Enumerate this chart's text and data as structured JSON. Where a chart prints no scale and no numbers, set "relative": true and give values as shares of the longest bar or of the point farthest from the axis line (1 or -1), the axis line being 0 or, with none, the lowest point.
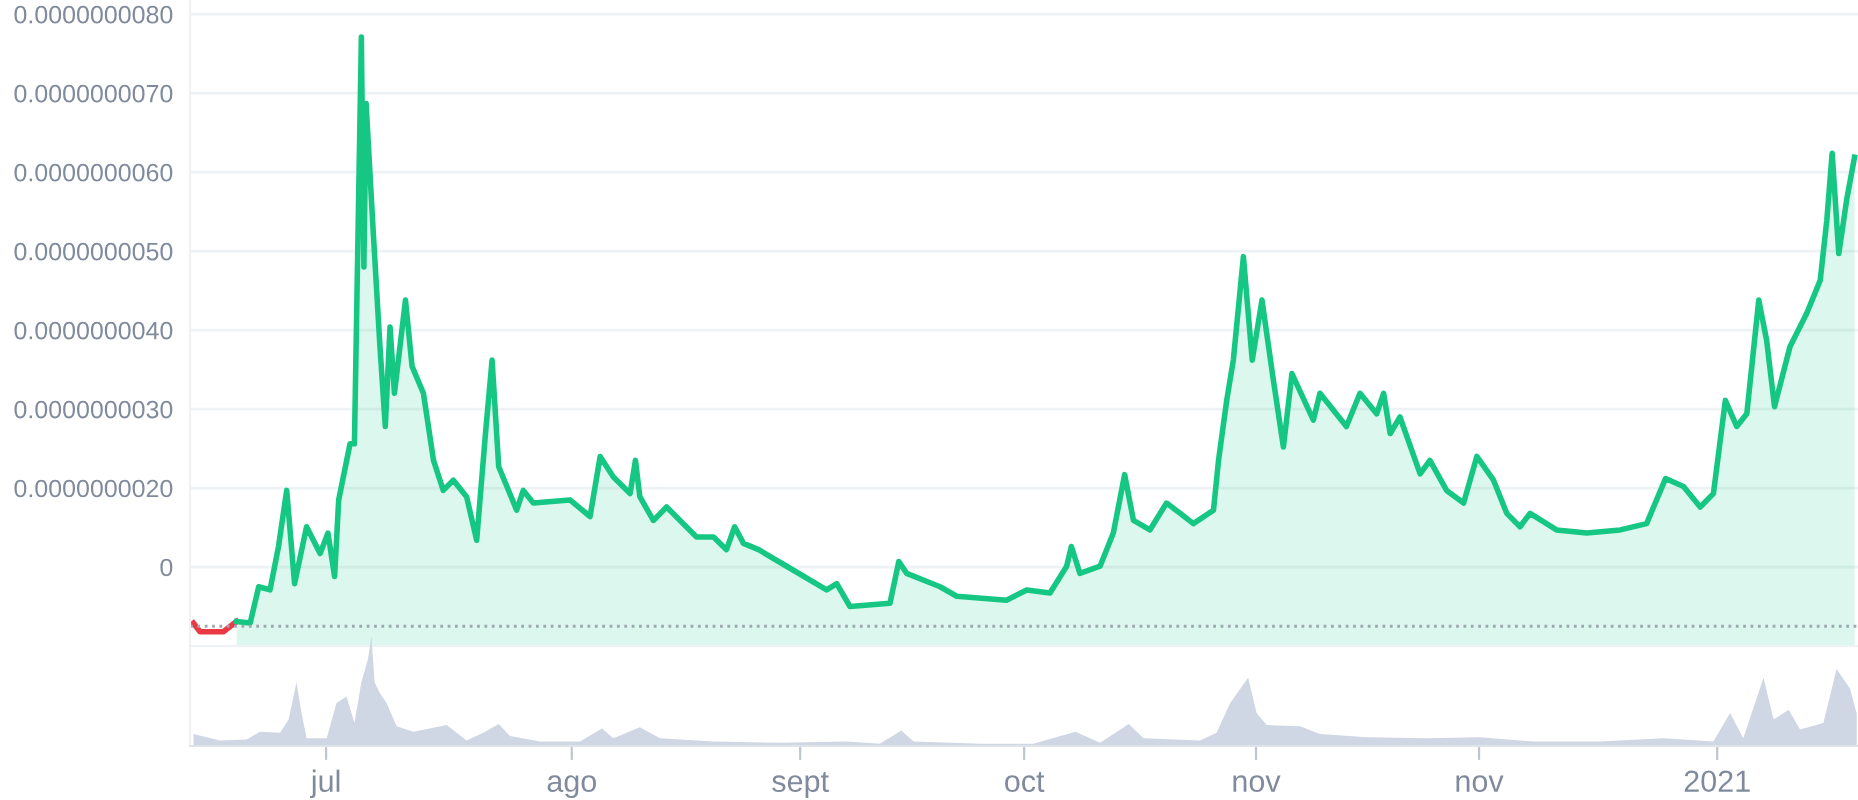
{
  "chart_data": [
    {
      "type": "line",
      "grid": "y",
      "legend": false,
      "tick_labels": "y",
      "xlim": [
        "2020-06-13",
        "2021-01-19T15:00"
      ],
      "ylim": [
        0,
        8.18e-09
      ],
      "yticks": [
        {
          "value": 1e-09,
          "label": "0"
        },
        {
          "value": 2e-09,
          "label": "0.0000000020"
        },
        {
          "value": 3e-09,
          "label": "0.0000000030"
        },
        {
          "value": 4e-09,
          "label": "0.0000000040"
        },
        {
          "value": 5e-09,
          "label": "0.0000000050"
        },
        {
          "value": 6e-09,
          "label": "0.0000000060"
        },
        {
          "value": 7e-09,
          "label": "0.0000000070"
        },
        {
          "value": 8e-09,
          "label": "0.0000000080"
        }
      ],
      "ref_lines": [
        {
          "axis": "y",
          "value": 2.5e-10,
          "label": null,
          "color": "#a0a7b3",
          "line_style": "dotted"
        }
      ],
      "series": [
        {
          "type": "line",
          "color": "#ea3943",
          "x": [
            "2020-06-13T11:00",
            "2020-06-14T08:00",
            "2020-06-17T10:00",
            "2020-06-19T04:00"
          ],
          "values": [
            2.9e-10,
            1.8e-10,
            1.8e-10,
            3.1e-10
          ]
        },
        {
          "type": "area",
          "color": "#16c784",
          "x": [
            "2020-06-19T04:00",
            "2020-06-20T23:00",
            "2020-06-22T02:00",
            "2020-06-23T14:00",
            "2020-06-24T17:00",
            "2020-06-25T19:00",
            "2020-06-26T20:00",
            "2020-06-28T10:00",
            "2020-06-30T05:00",
            "2020-07-01T06:00",
            "2020-07-02T03:00",
            "2020-07-02T16:00",
            "2020-07-04T04:00",
            "2020-07-04T18:00",
            "2020-07-05T16:00",
            "2020-07-06T00:00",
            "2020-07-06T07:00",
            "2020-07-07T06:00",
            "2020-07-08T03:00",
            "2020-07-08T20:00",
            "2020-07-09T11:00",
            "2020-07-10T01:00",
            "2020-07-11T12:00",
            "2020-07-12T09:00",
            "2020-07-13T21:00",
            "2020-07-15T05:00",
            "2020-07-16T12:00",
            "2020-07-17T20:00",
            "2020-07-19T14:00",
            "2020-07-20T22:00",
            "2020-07-22T02:00",
            "2020-07-22T23:00",
            "2020-07-23T20:00",
            "2020-07-26T05:00",
            "2020-07-27T02:00",
            "2020-07-28T10:00",
            "2020-08-02T06:00",
            "2020-08-04T22:00",
            "2020-08-06T06:00",
            "2020-08-08T00:00",
            "2020-08-10T05:00",
            "2020-08-10T22:00",
            "2020-08-11T12:00",
            "2020-08-13T07:00",
            "2020-08-15T01:00",
            "2020-08-19T00:00",
            "2020-08-21T06:00",
            "2020-08-22T23:00",
            "2020-08-24T01:00",
            "2020-08-25T05:00",
            "2020-08-27T05:00",
            "2020-08-30T22:00",
            "2020-09-05T05:00",
            "2020-09-06T13:00",
            "2020-09-08T07:00",
            "2020-09-13T14:00",
            "2020-09-14T18:00",
            "2020-09-15T19:00",
            "2020-09-20T05:00",
            "2020-09-22T10:00",
            "2020-09-29T00:00",
            "2020-10-01T16:00",
            "2020-10-04T18:00",
            "2020-10-06T23:00",
            "2020-10-07T14:00",
            "2020-10-08T17:00",
            "2020-10-11T09:00",
            "2020-10-13T03:00",
            "2020-10-14T15:00",
            "2020-10-15T19:00",
            "2020-10-17T23:00",
            "2020-10-20T04:00",
            "2020-10-21T23:00",
            "2020-10-23T17:00",
            "2020-10-26T09:00",
            "2020-10-27T01:00",
            "2020-10-28T03:00",
            "2020-10-29T00:00",
            "2020-10-30T08:00",
            "2020-10-31T12:00",
            "2020-11-01T19:00",
            "2020-11-03T07:00",
            "2020-11-04T15:00",
            "2020-11-05T18:00",
            "2020-11-08T14:00",
            "2020-11-09T11:00",
            "2020-11-12T23:00",
            "2020-11-14T18:00",
            "2020-11-16T23:00",
            "2020-11-17T21:00",
            "2020-11-18T18:00",
            "2020-11-20T01:00",
            "2020-11-22T17:00",
            "2020-11-24T00:00",
            "2020-11-26T05:00",
            "2020-11-28T11:00",
            "2020-11-30T05:00",
            "2020-12-02T10:00",
            "2020-12-04T04:00",
            "2020-12-05T22:00",
            "2020-12-07T06:00",
            "2020-12-10T18:00",
            "2020-12-14T18:00",
            "2020-12-19T04:00",
            "2020-12-22T16:00",
            "2020-12-25T04:00",
            "2020-12-27T13:00",
            "2020-12-29T18:00",
            "2020-12-31T12:00",
            "2021-01-02T02:00",
            "2021-01-03T14:00",
            "2021-01-04T22:00",
            "2021-01-06T12:00",
            "2021-01-07T13:00",
            "2021-01-08T14:00",
            "2021-01-10T15:00",
            "2021-01-12T20:00",
            "2021-01-14T15:00",
            "2021-01-15T12:00",
            "2021-01-16T05:00",
            "2021-01-17T02:00",
            "2021-01-18T03:00",
            "2021-01-19T04:00"
          ],
          "values": [
            3.1e-10,
            2.9e-10,
            7.5e-10,
            7.1e-10,
            1.26e-09,
            1.97e-09,
            7.9e-10,
            1.51e-09,
            1.17e-09,
            1.43e-09,
            8.8e-10,
            1.85e-09,
            2.56e-09,
            2.56e-09,
            7.71e-09,
            4.8e-09,
            6.87e-09,
            5.22e-09,
            3.79e-09,
            2.78e-09,
            4.04e-09,
            3.2e-09,
            4.38e-09,
            3.54e-09,
            3.2e-09,
            2.35e-09,
            1.97e-09,
            2.1e-09,
            1.89e-09,
            1.34e-09,
            2.69e-09,
            3.62e-09,
            2.27e-09,
            1.72e-09,
            1.97e-09,
            1.81e-09,
            1.85e-09,
            1.64e-09,
            2.4e-09,
            2.14e-09,
            1.93e-09,
            2.35e-09,
            1.89e-09,
            1.59e-09,
            1.76e-09,
            1.38e-09,
            1.38e-09,
            1.22e-09,
            1.51e-09,
            1.3e-09,
            1.22e-09,
            1.01e-09,
            7.1e-10,
            7.9e-10,
            5e-10,
            5.4e-10,
            1.07e-09,
            9.2e-10,
            7.5e-10,
            6.3e-10,
            5.8e-10,
            7.1e-10,
            6.7e-10,
            1.01e-09,
            1.26e-09,
            9.2e-10,
            1.01e-09,
            1.43e-09,
            2.17e-09,
            1.59e-09,
            1.47e-09,
            1.81e-09,
            1.68e-09,
            1.55e-09,
            1.72e-09,
            2.35e-09,
            3.11e-09,
            3.62e-09,
            4.93e-09,
            3.62e-09,
            4.38e-09,
            3.37e-09,
            2.52e-09,
            3.45e-09,
            2.86e-09,
            3.2e-09,
            2.78e-09,
            3.2e-09,
            2.94e-09,
            3.2e-09,
            2.69e-09,
            2.9e-09,
            2.18e-09,
            2.35e-09,
            1.97e-09,
            1.81e-09,
            2.4e-09,
            2.1e-09,
            1.68e-09,
            1.51e-09,
            1.68e-09,
            1.47e-09,
            1.43e-09,
            1.47e-09,
            1.55e-09,
            2.12e-09,
            2.02e-09,
            1.76e-09,
            1.93e-09,
            3.11e-09,
            2.78e-09,
            2.94e-09,
            4.38e-09,
            3.87e-09,
            3.03e-09,
            3.79e-09,
            4.21e-09,
            4.63e-09,
            5.39e-09,
            6.24e-09,
            4.97e-09,
            5.65e-09,
            6.19e-09
          ]
        }
      ]
    },
    {
      "type": "area",
      "relative": true,
      "grid": false,
      "legend": false,
      "tick_labels": "x",
      "xlim": [
        "2020-06-13",
        "2021-01-19T15:00"
      ],
      "xticks": [
        {
          "value": "2020-07-01",
          "label": "jul"
        },
        {
          "value": "2020-08-02T12:00",
          "label": "ago"
        },
        {
          "value": "2020-09-01T17:00",
          "label": "sept"
        },
        {
          "value": "2020-10-01T08:00",
          "label": "oct"
        },
        {
          "value": "2020-11-01",
          "label": "nov"
        },
        {
          "value": "2020-11-30T12:00",
          "label": "nov"
        },
        {
          "value": "2021-01-01",
          "label": "2021"
        }
      ],
      "series": [
        {
          "color": "#cfd6e4",
          "x": [
            "2020-06-13T11:00",
            "2020-06-16T23:00",
            "2020-06-20T12:00",
            "2020-06-22T06:00",
            "2020-06-24T22:00",
            "2020-06-26T01:00",
            "2020-06-27T02:00",
            "2020-06-27T18:00",
            "2020-06-28T10:00",
            "2020-07-01T02:00",
            "2020-07-02T09:00",
            "2020-07-03T17:00",
            "2020-07-04T18:00",
            "2020-07-05T16:00",
            "2020-07-06T13:00",
            "2020-07-07T00:00",
            "2020-07-07T10:00",
            "2020-07-08T03:00",
            "2020-07-09T00:00",
            "2020-07-10T08:00",
            "2020-07-12T13:00",
            "2020-07-16T23:00",
            "2020-07-19T14:00",
            "2020-07-21T19:00",
            "2020-07-23T20:00",
            "2020-07-25T08:00",
            "2020-07-29T07:00",
            "2020-08-03T14:00",
            "2020-08-06T12:00",
            "2020-08-08T00:00",
            "2020-08-11T12:00",
            "2020-08-14T04:00",
            "2020-08-21T06:00",
            "2020-08-30T01:00",
            "2020-09-07T20:00",
            "2020-09-12T06:00",
            "2020-09-15T02:00",
            "2020-09-16T17:00",
            "2020-09-25T12:00",
            "2020-10-02T13:00",
            "2020-10-08T03:00",
            "2020-10-11T09:00",
            "2020-10-15T04:00",
            "2020-10-17T03:00",
            "2020-10-24T14:00",
            "2020-10-26T19:00",
            "2020-10-28T14:00",
            "2020-10-30T23:00",
            "2020-11-01T02:00",
            "2020-11-02T10:00",
            "2020-11-06T20:00",
            "2020-11-09T11:00",
            "2020-11-15T15:00",
            "2020-11-23T14:00",
            "2020-11-30T15:00",
            "2020-12-07T17:00",
            "2020-12-16T12:00",
            "2020-12-24T21:00",
            "2020-12-31T12:00",
            "2021-01-02T17:00",
            "2021-01-04T11:00",
            "2021-01-07T03:00",
            "2021-01-08T11:00",
            "2021-01-10T11:00",
            "2021-01-11T23:00",
            "2021-01-15T01:00",
            "2021-01-16T19:00",
            "2021-01-18T14:00",
            "2021-01-19T11:00"
          ],
          "values": [
            0.11,
            0.05,
            0.06,
            0.13,
            0.12,
            0.24,
            0.58,
            0.3,
            0.07,
            0.07,
            0.39,
            0.45,
            0.21,
            0.58,
            0.79,
            1,
            0.58,
            0.48,
            0.39,
            0.18,
            0.13,
            0.19,
            0.05,
            0.12,
            0.2,
            0.09,
            0.04,
            0.04,
            0.16,
            0.07,
            0.17,
            0.07,
            0.04,
            0.03,
            0.04,
            0.02,
            0.14,
            0.04,
            0.02,
            0.02,
            0.13,
            0.03,
            0.2,
            0.07,
            0.05,
            0.12,
            0.39,
            0.62,
            0.3,
            0.19,
            0.18,
            0.11,
            0.08,
            0.07,
            0.08,
            0.04,
            0.04,
            0.07,
            0.04,
            0.3,
            0.07,
            0.62,
            0.24,
            0.33,
            0.15,
            0.21,
            0.7,
            0.52,
            0.29
          ]
        }
      ]
    }
  ]
}
